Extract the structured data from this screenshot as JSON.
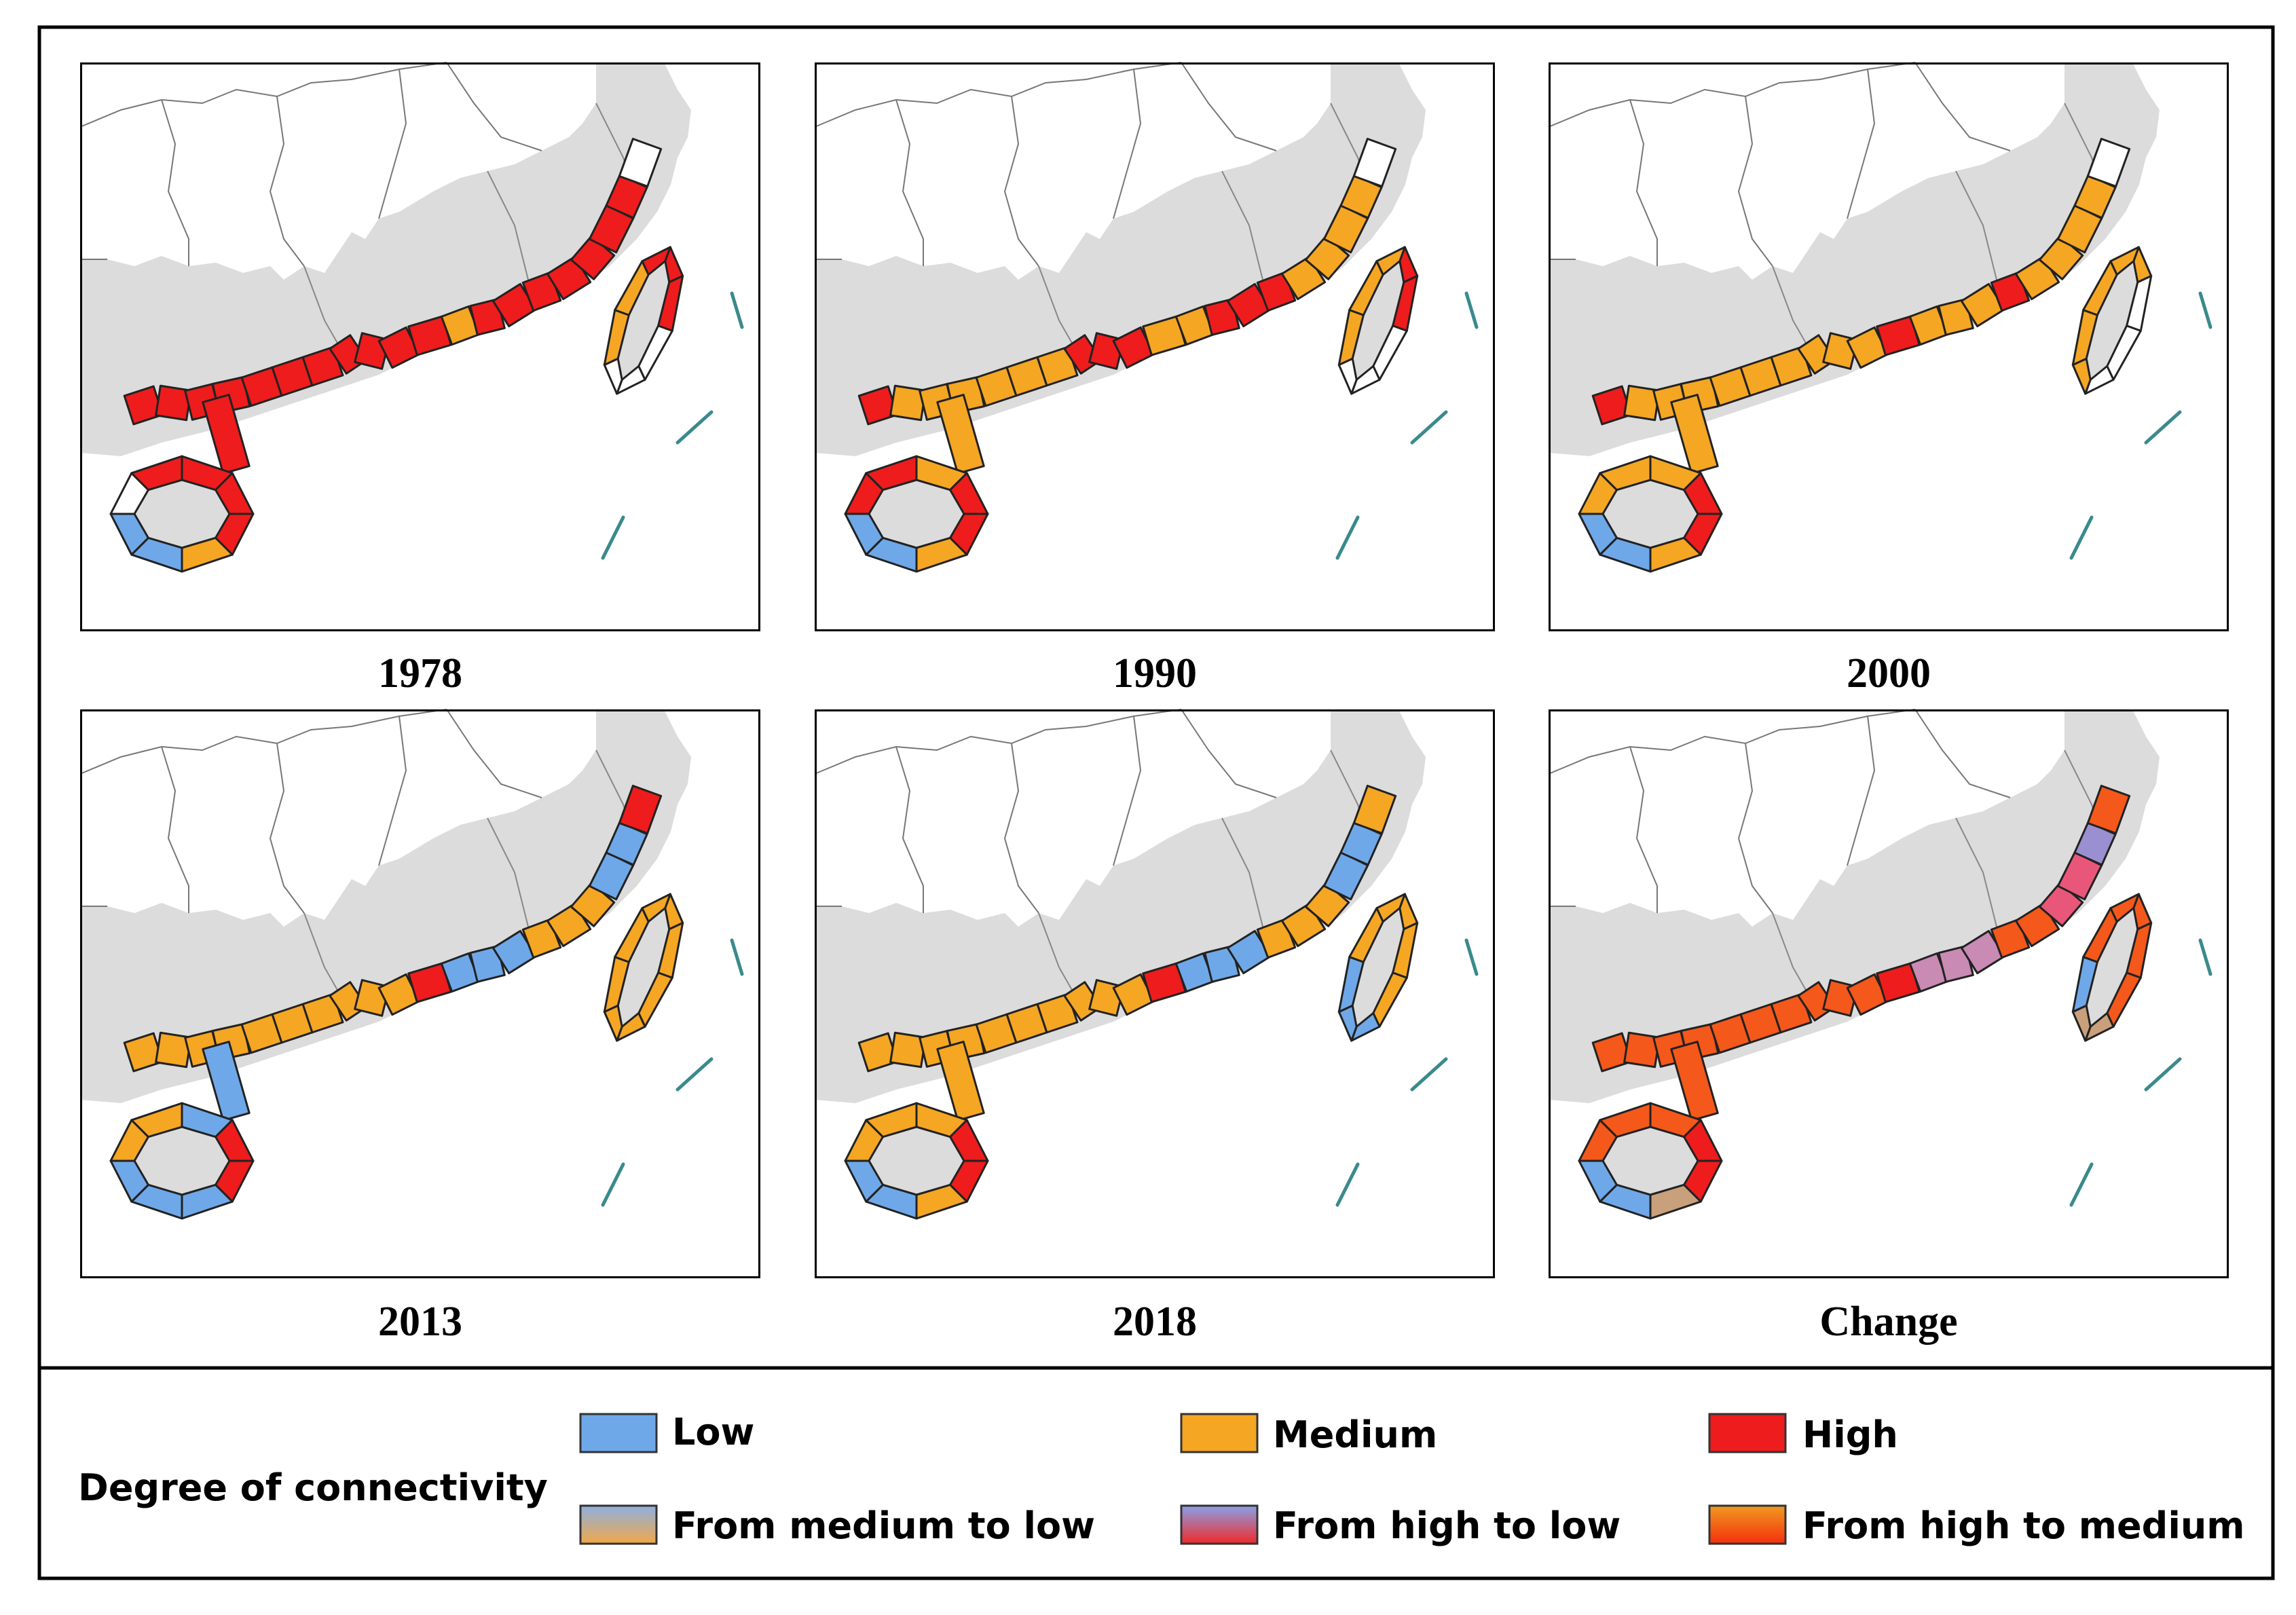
{
  "panels": [
    {
      "label": "1978",
      "segments": [
        "#ee1c1c",
        "#ee1c1c",
        "#ee1c1c",
        "#ee1c1c",
        "#ee1c1c",
        "#ee1c1c",
        "#ee1c1c",
        "#ee1c1c",
        "#ee1c1c",
        "#ee1c1c",
        "#ee1c1c",
        "#f5a623",
        "#ee1c1c",
        "#ee1c1c",
        "#ee1c1c",
        "#ee1c1c",
        "#ee1c1c",
        "#ee1c1c",
        "#ee1c1c",
        "#ffffff"
      ],
      "hainan": [
        "#ee1c1c",
        "#ee1c1c",
        "#ee1c1c",
        "#f5a623",
        "#6fa8e8",
        "#6fa8e8",
        "#ffffff",
        "#ee1c1c"
      ],
      "taiwan": [
        "#ee1c1c",
        "#ee1c1c",
        "#ffffff",
        "#ffffff",
        "#ffffff",
        "#f5a623",
        "#f5a623",
        "#ee1c1c"
      ]
    },
    {
      "label": "1990",
      "segments": [
        "#ee1c1c",
        "#f5a623",
        "#f5a623",
        "#f5a623",
        "#f5a623",
        "#f5a623",
        "#f5a623",
        "#ee1c1c",
        "#ee1c1c",
        "#ee1c1c",
        "#f5a623",
        "#f5a623",
        "#ee1c1c",
        "#ee1c1c",
        "#ee1c1c",
        "#f5a623",
        "#f5a623",
        "#f5a623",
        "#f5a623",
        "#ffffff"
      ],
      "hainan": [
        "#f5a623",
        "#ee1c1c",
        "#ee1c1c",
        "#f5a623",
        "#6fa8e8",
        "#6fa8e8",
        "#ee1c1c",
        "#ee1c1c"
      ],
      "taiwan": [
        "#ee1c1c",
        "#ee1c1c",
        "#ffffff",
        "#ffffff",
        "#ffffff",
        "#f5a623",
        "#f5a623",
        "#f5a623"
      ]
    },
    {
      "label": "2000",
      "segments": [
        "#ee1c1c",
        "#f5a623",
        "#f5a623",
        "#f5a623",
        "#f5a623",
        "#f5a623",
        "#f5a623",
        "#f5a623",
        "#f5a623",
        "#f5a623",
        "#ee1c1c",
        "#f5a623",
        "#f5a623",
        "#f5a623",
        "#ee1c1c",
        "#f5a623",
        "#f5a623",
        "#f5a623",
        "#f5a623",
        "#ffffff"
      ],
      "hainan": [
        "#f5a623",
        "#ee1c1c",
        "#ee1c1c",
        "#f5a623",
        "#6fa8e8",
        "#6fa8e8",
        "#f5a623",
        "#f5a623"
      ],
      "taiwan": [
        "#f5a623",
        "#ffffff",
        "#ffffff",
        "#ffffff",
        "#f5a623",
        "#f5a623",
        "#f5a623",
        "#f5a623"
      ]
    },
    {
      "label": "2013",
      "segments": [
        "#f5a623",
        "#f5a623",
        "#f5a623",
        "#f5a623",
        "#f5a623",
        "#f5a623",
        "#f5a623",
        "#f5a623",
        "#f5a623",
        "#f5a623",
        "#ee1c1c",
        "#6fa8e8",
        "#6fa8e8",
        "#6fa8e8",
        "#f5a623",
        "#f5a623",
        "#f5a623",
        "#6fa8e8",
        "#6fa8e8",
        "#ee1c1c"
      ],
      "hainan": [
        "#6fa8e8",
        "#ee1c1c",
        "#ee1c1c",
        "#6fa8e8",
        "#6fa8e8",
        "#6fa8e8",
        "#f5a623",
        "#f5a623"
      ],
      "taiwan": [
        "#f5a623",
        "#f5a623",
        "#f5a623",
        "#f5a623",
        "#f5a623",
        "#f5a623",
        "#f5a623",
        "#f5a623"
      ]
    },
    {
      "label": "2018",
      "segments": [
        "#f5a623",
        "#f5a623",
        "#f5a623",
        "#f5a623",
        "#f5a623",
        "#f5a623",
        "#f5a623",
        "#f5a623",
        "#f5a623",
        "#f5a623",
        "#ee1c1c",
        "#6fa8e8",
        "#6fa8e8",
        "#6fa8e8",
        "#f5a623",
        "#f5a623",
        "#f5a623",
        "#6fa8e8",
        "#6fa8e8",
        "#f5a623"
      ],
      "hainan": [
        "#f5a623",
        "#ee1c1c",
        "#ee1c1c",
        "#f5a623",
        "#6fa8e8",
        "#6fa8e8",
        "#f5a623",
        "#f5a623"
      ],
      "taiwan": [
        "#f5a623",
        "#f5a623",
        "#f5a623",
        "#6fa8e8",
        "#6fa8e8",
        "#6fa8e8",
        "#f5a623",
        "#f5a623"
      ]
    },
    {
      "label": "Change",
      "segments": [
        "#f4581a",
        "#f4581a",
        "#f4581a",
        "#f4581a",
        "#f4581a",
        "#f4581a",
        "#f4581a",
        "#f4581a",
        "#f4581a",
        "#f4581a",
        "#ee1c1c",
        "#c98ab4",
        "#c98ab4",
        "#c98ab4",
        "#f4581a",
        "#f4581a",
        "#e8577a",
        "#e8577a",
        "#9a8fd0",
        "#f4581a"
      ],
      "hainan": [
        "#f4581a",
        "#ee1c1c",
        "#ee1c1c",
        "#c9a07c",
        "#6fa8e8",
        "#6fa8e8",
        "#f4581a",
        "#f4581a"
      ],
      "taiwan": [
        "#f4581a",
        "#f4581a",
        "#f4581a",
        "#c9a07c",
        "#c9a07c",
        "#6fa8e8",
        "#f4581a",
        "#f4581a"
      ]
    }
  ],
  "legend": {
    "title": "Degree of connectivity",
    "items": [
      {
        "label": "Low",
        "fill": "#6fa8e8"
      },
      {
        "label": "Medium",
        "fill": "#f5a623"
      },
      {
        "label": "High",
        "fill": "#ee1c1c"
      },
      {
        "label": "From medium to low",
        "fill": "url(#g-med-low)"
      },
      {
        "label": "From high to low",
        "fill": "url(#g-high-low)"
      },
      {
        "label": "From high to medium",
        "fill": "url(#g-high-med)"
      }
    ]
  }
}
